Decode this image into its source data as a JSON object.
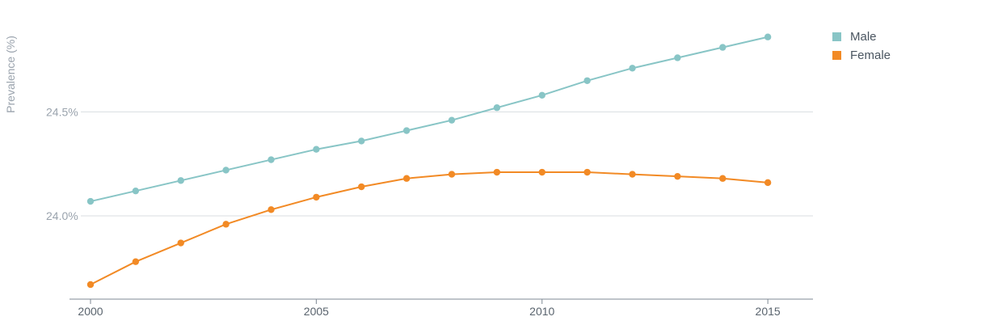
{
  "chart_data": {
    "type": "line",
    "ylabel": "Prevalence (%)",
    "xlabel": "",
    "x": [
      2000,
      2001,
      2002,
      2003,
      2004,
      2005,
      2006,
      2007,
      2008,
      2009,
      2010,
      2011,
      2012,
      2013,
      2014,
      2015
    ],
    "xticks": [
      {
        "value": 2000,
        "label": "2000"
      },
      {
        "value": 2005,
        "label": "2005"
      },
      {
        "value": 2010,
        "label": "2010"
      },
      {
        "value": 2015,
        "label": "2015"
      }
    ],
    "yticks": [
      {
        "value": 24.0,
        "label": "24.0%"
      },
      {
        "value": 24.5,
        "label": "24.5%"
      }
    ],
    "xlim": [
      2000,
      2016
    ],
    "ylim": [
      23.6,
      24.96
    ],
    "grid": "horizontal",
    "legend_position": "top-right",
    "series": [
      {
        "name": "Male",
        "color": "#88c5c6",
        "values": [
          24.07,
          24.12,
          24.17,
          24.22,
          24.27,
          24.32,
          24.36,
          24.41,
          24.46,
          24.52,
          24.58,
          24.65,
          24.71,
          24.76,
          24.81,
          24.86
        ]
      },
      {
        "name": "Female",
        "color": "#f28a25",
        "values": [
          23.67,
          23.78,
          23.87,
          23.96,
          24.03,
          24.09,
          24.14,
          24.18,
          24.2,
          24.21,
          24.21,
          24.21,
          24.2,
          24.19,
          24.18,
          24.16
        ]
      }
    ]
  }
}
